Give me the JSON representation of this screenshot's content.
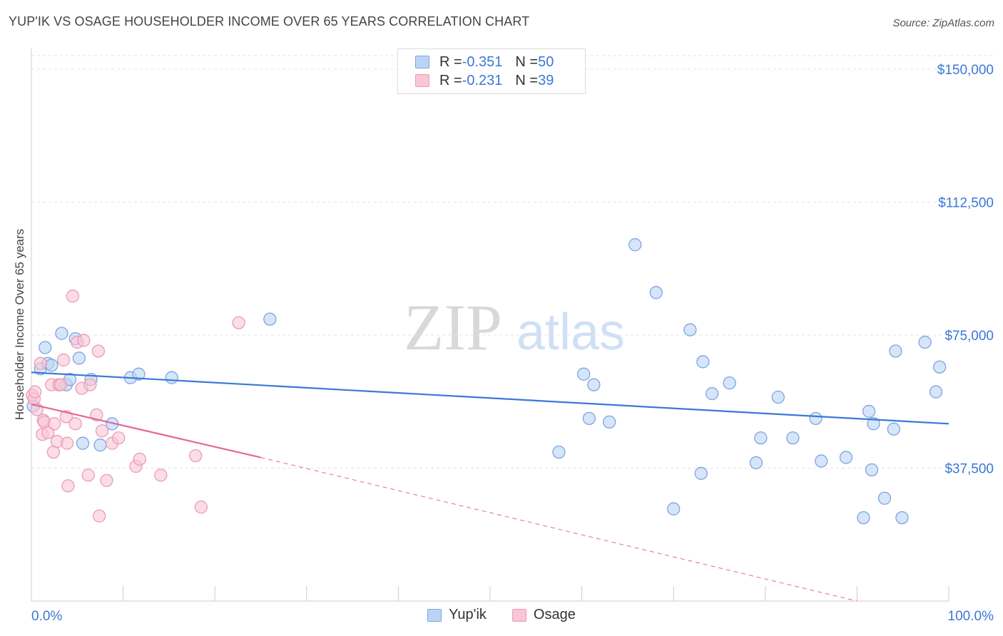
{
  "title": "YUP'IK VS OSAGE HOUSEHOLDER INCOME OVER 65 YEARS CORRELATION CHART",
  "source": "Source: ZipAtlas.com",
  "watermark": {
    "zip": "ZIP",
    "atlas": "atlas"
  },
  "colors": {
    "blue": "#3b78d8",
    "blue_fill": "#bcd4f4",
    "blue_stroke": "#7aa6e3",
    "pink": "#e2689a",
    "pink_fill": "#f9c6d6",
    "pink_stroke": "#ee9ab8",
    "grid": "#e3e3e3",
    "axis_text": "#3b78d8"
  },
  "legend": {
    "rows": [
      {
        "r_label": "R = ",
        "r_value": "-0.351",
        "n_label": "N = ",
        "n_value": "50"
      },
      {
        "r_label": "R = ",
        "r_value": "-0.231",
        "n_label": "N = ",
        "n_value": "39"
      }
    ]
  },
  "bottom_legend": [
    "Yup'ik",
    "Osage"
  ],
  "chart_data": {
    "type": "scatter",
    "title": "YUP'IK VS OSAGE HOUSEHOLDER INCOME OVER 65 YEARS CORRELATION CHART",
    "xlabel": "",
    "ylabel": "Householder Income Over 65 years",
    "xlim": [
      0,
      100
    ],
    "ylim": [
      0,
      150000
    ],
    "x_tick_labels": [
      "0.0%",
      "100.0%"
    ],
    "y_ticks": [
      37500,
      75000,
      112500,
      150000
    ],
    "y_tick_labels": [
      "$37,500",
      "$75,000",
      "$112,500",
      "$150,000"
    ],
    "grid": true,
    "series": [
      {
        "name": "Yup'ik",
        "color": "#3b78d8",
        "points": [
          [
            0.2,
            55000
          ],
          [
            1.0,
            65500
          ],
          [
            1.5,
            71500
          ],
          [
            1.8,
            67000
          ],
          [
            2.2,
            66500
          ],
          [
            3.0,
            61000
          ],
          [
            3.3,
            75500
          ],
          [
            3.8,
            61000
          ],
          [
            4.2,
            62500
          ],
          [
            4.8,
            74000
          ],
          [
            5.2,
            68500
          ],
          [
            5.6,
            44500
          ],
          [
            6.5,
            62500
          ],
          [
            7.5,
            44000
          ],
          [
            8.8,
            50000
          ],
          [
            10.8,
            63000
          ],
          [
            11.7,
            64000
          ],
          [
            15.3,
            63000
          ],
          [
            26.0,
            79500
          ],
          [
            57.5,
            42000
          ],
          [
            60.2,
            64000
          ],
          [
            60.8,
            51500
          ],
          [
            61.3,
            61000
          ],
          [
            63.0,
            50500
          ],
          [
            65.8,
            100500
          ],
          [
            68.1,
            87000
          ],
          [
            70.0,
            26000
          ],
          [
            71.8,
            76500
          ],
          [
            73.0,
            36000
          ],
          [
            73.2,
            67500
          ],
          [
            74.2,
            58500
          ],
          [
            76.1,
            61500
          ],
          [
            79.5,
            46000
          ],
          [
            79.0,
            39000
          ],
          [
            81.4,
            57500
          ],
          [
            83.0,
            46000
          ],
          [
            85.5,
            51500
          ],
          [
            86.1,
            39500
          ],
          [
            88.8,
            40500
          ],
          [
            90.7,
            23500
          ],
          [
            91.3,
            53500
          ],
          [
            91.6,
            37000
          ],
          [
            91.8,
            50000
          ],
          [
            93.0,
            29000
          ],
          [
            94.0,
            48500
          ],
          [
            94.2,
            70500
          ],
          [
            94.9,
            23500
          ],
          [
            97.4,
            73000
          ],
          [
            98.6,
            59000
          ],
          [
            99.0,
            66000
          ]
        ]
      },
      {
        "name": "Osage",
        "color": "#e2689a",
        "points": [
          [
            0.1,
            58000
          ],
          [
            0.3,
            57000
          ],
          [
            0.4,
            59000
          ],
          [
            0.6,
            54000
          ],
          [
            1.0,
            67000
          ],
          [
            1.2,
            47000
          ],
          [
            1.3,
            51000
          ],
          [
            1.4,
            50500
          ],
          [
            1.8,
            47500
          ],
          [
            2.2,
            61000
          ],
          [
            2.4,
            42000
          ],
          [
            2.5,
            50000
          ],
          [
            2.8,
            45000
          ],
          [
            3.0,
            61000
          ],
          [
            3.2,
            61000
          ],
          [
            3.5,
            68000
          ],
          [
            3.8,
            52000
          ],
          [
            3.9,
            44500
          ],
          [
            4.0,
            32500
          ],
          [
            4.5,
            86000
          ],
          [
            4.8,
            50000
          ],
          [
            5.0,
            73000
          ],
          [
            5.5,
            60000
          ],
          [
            5.7,
            73500
          ],
          [
            6.2,
            35500
          ],
          [
            6.4,
            61000
          ],
          [
            7.1,
            52500
          ],
          [
            7.3,
            70500
          ],
          [
            7.4,
            24000
          ],
          [
            7.7,
            48000
          ],
          [
            8.2,
            34000
          ],
          [
            8.8,
            44500
          ],
          [
            9.5,
            46000
          ],
          [
            11.4,
            38000
          ],
          [
            11.8,
            40000
          ],
          [
            14.1,
            35500
          ],
          [
            17.9,
            41000
          ],
          [
            18.5,
            26500
          ],
          [
            22.6,
            78500
          ]
        ]
      }
    ],
    "trend_lines": [
      {
        "series": "Yup'ik",
        "from": [
          0,
          64500
        ],
        "to": [
          100,
          50000
        ],
        "style": "solid"
      },
      {
        "series": "Osage",
        "from": [
          0,
          55500
        ],
        "to": [
          25,
          40500
        ],
        "style": "solid"
      },
      {
        "series": "Osage",
        "from": [
          25,
          40500
        ],
        "to": [
          90,
          0
        ],
        "style": "dashed"
      }
    ]
  }
}
